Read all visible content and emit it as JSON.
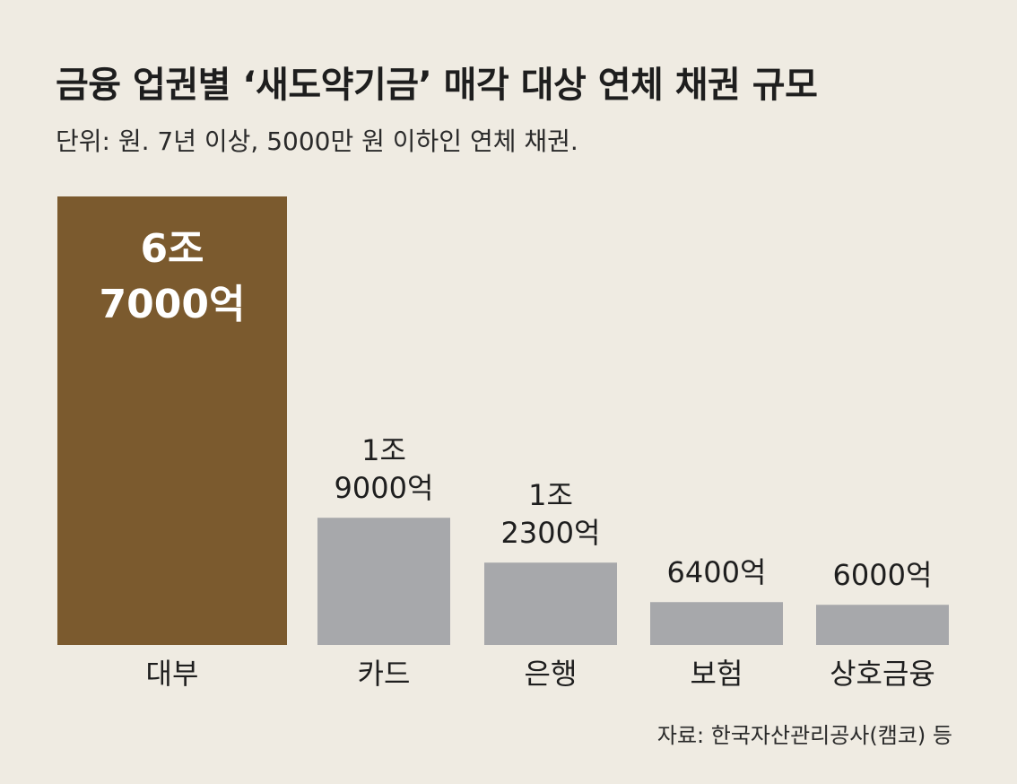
{
  "title": "금융 업권별 ‘새도약기금’ 매각 대상 연체 채권 규모",
  "subtitle": "단위: 원. 7년 이상, 5000만 원 이하인 연체 채권.",
  "source": "자료: 한국자산관리공사(캠코) 등",
  "colors": {
    "highlight": "#7b5a2e",
    "default": "#a7a8ab",
    "background": "#efebe2"
  },
  "chart_data": {
    "type": "bar",
    "categories": [
      "대부",
      "카드",
      "은행",
      "보험",
      "상호금융"
    ],
    "values": [
      67000,
      19000,
      12300,
      6400,
      6000
    ],
    "value_unit": "억 원",
    "data_labels": [
      [
        "6조",
        "7000억"
      ],
      [
        "1조",
        "9000억"
      ],
      [
        "1조",
        "2300억"
      ],
      [
        "6400억"
      ],
      [
        "6000억"
      ]
    ],
    "highlight_index": 0,
    "ylim": [
      0,
      67000
    ],
    "grid": false,
    "legend": "none"
  }
}
